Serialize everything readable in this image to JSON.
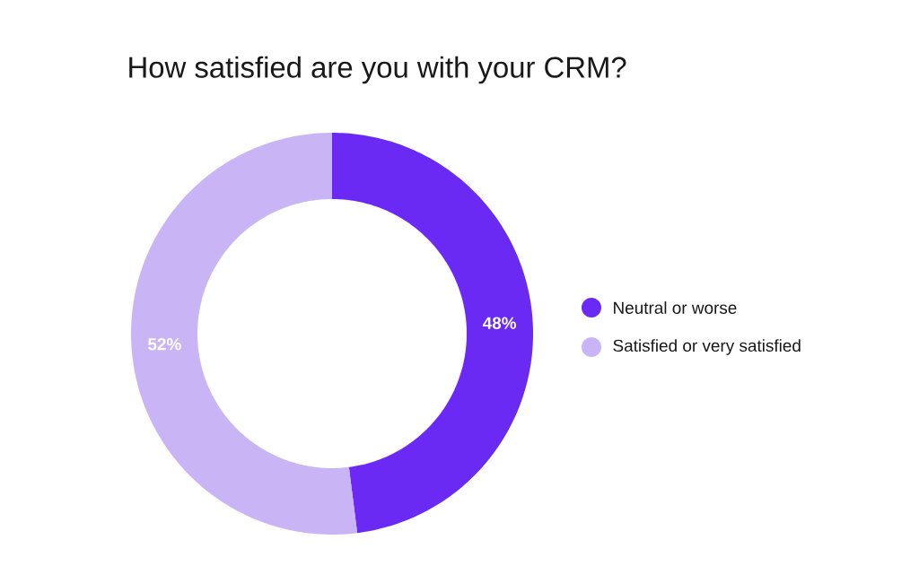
{
  "chart_data": {
    "type": "donut",
    "title": "How satisfied are you with your CRM?",
    "categories": [
      "Neutral or worse",
      "Satisfied or very satisfied"
    ],
    "values": [
      48,
      52
    ],
    "colors": [
      "#6a2af4",
      "#c9b4f6"
    ],
    "value_labels": [
      "48%",
      "52%"
    ],
    "legend": "right"
  }
}
